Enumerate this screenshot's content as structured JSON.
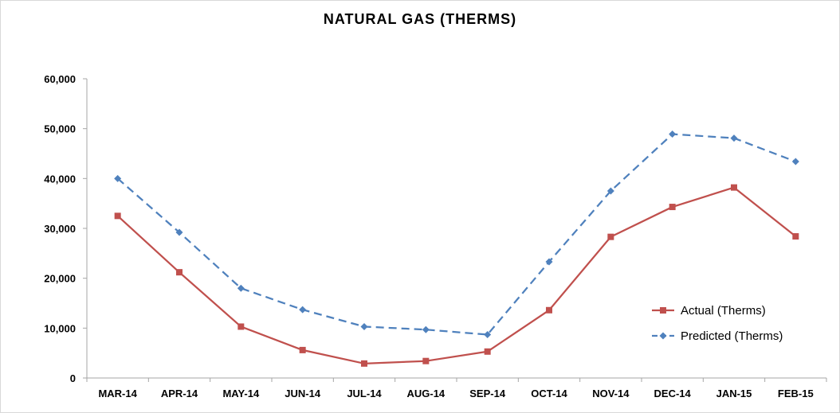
{
  "chart_data": {
    "type": "line",
    "title": "NATURAL GAS (THERMS)",
    "categories": [
      "MAR-14",
      "APR-14",
      "MAY-14",
      "JUN-14",
      "JUL-14",
      "AUG-14",
      "SEP-14",
      "OCT-14",
      "NOV-14",
      "DEC-14",
      "JAN-15",
      "FEB-15"
    ],
    "ylim": [
      0,
      60000
    ],
    "yticks": [
      0,
      10000,
      20000,
      30000,
      40000,
      50000,
      60000
    ],
    "ytick_labels": [
      "0",
      "10,000",
      "20,000",
      "30,000",
      "40,000",
      "50,000",
      "60,000"
    ],
    "grid": false,
    "legend_position": "bottom-right",
    "series": [
      {
        "name": "Actual (Therms)",
        "color": "#c0504d",
        "marker": "square",
        "line_style": "solid",
        "values": [
          32500,
          21200,
          10300,
          5600,
          2900,
          3400,
          5300,
          13600,
          28300,
          34300,
          38200,
          28400
        ]
      },
      {
        "name": "Predicted (Therms)",
        "color": "#4f81bd",
        "marker": "diamond",
        "line_style": "dashed",
        "values": [
          40000,
          29200,
          18000,
          13700,
          10300,
          9700,
          8700,
          23300,
          37500,
          48900,
          48100,
          43400
        ]
      }
    ]
  }
}
